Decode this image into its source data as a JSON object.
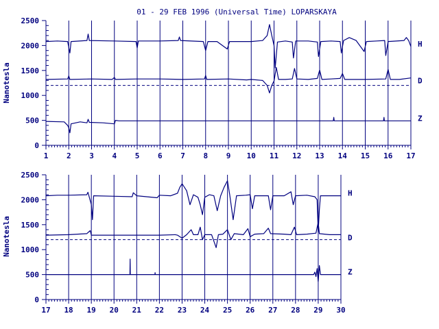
{
  "title": "01 - 29 FEB 1996 (Universal Time) LOPARSKAYA",
  "colors": {
    "line": "#00007f",
    "background": "#ffffff"
  },
  "chart_data": [
    {
      "type": "line",
      "panel": "top",
      "ylabel": "Nanotesla",
      "ylim": [
        0,
        2500
      ],
      "yticks": [
        0,
        500,
        1000,
        1500,
        2000,
        2500
      ],
      "xlim": [
        1,
        17
      ],
      "xticks": [
        1,
        2,
        3,
        4,
        5,
        6,
        7,
        8,
        9,
        10,
        11,
        12,
        13,
        14,
        15,
        16,
        17
      ],
      "grid": "vertical day lines",
      "baseline": {
        "value": 1200,
        "style": "dashed"
      },
      "series": [
        {
          "name": "H",
          "values": [
            [
              1,
              2080
            ],
            [
              1.5,
              2090
            ],
            [
              1.95,
              2080
            ],
            [
              2.05,
              1850
            ],
            [
              2.1,
              2080
            ],
            [
              2.8,
              2100
            ],
            [
              2.85,
              2230
            ],
            [
              2.9,
              2100
            ],
            [
              4,
              2090
            ],
            [
              4.95,
              2080
            ],
            [
              5.0,
              1950
            ],
            [
              5.05,
              2090
            ],
            [
              6,
              2090
            ],
            [
              6.8,
              2100
            ],
            [
              6.85,
              2170
            ],
            [
              6.9,
              2100
            ],
            [
              7.9,
              2080
            ],
            [
              8.0,
              1900
            ],
            [
              8.1,
              2080
            ],
            [
              8.5,
              2080
            ],
            [
              8.95,
              1930
            ],
            [
              9.05,
              2080
            ],
            [
              9.5,
              2080
            ],
            [
              10,
              2080
            ],
            [
              10.5,
              2100
            ],
            [
              10.7,
              2200
            ],
            [
              10.8,
              2420
            ],
            [
              10.9,
              2200
            ],
            [
              11.0,
              2000
            ],
            [
              11.05,
              1550
            ],
            [
              11.15,
              2070
            ],
            [
              11.5,
              2090
            ],
            [
              11.8,
              2070
            ],
            [
              11.85,
              1750
            ],
            [
              11.95,
              2090
            ],
            [
              12.5,
              2090
            ],
            [
              12.9,
              2070
            ],
            [
              12.95,
              1780
            ],
            [
              13.05,
              2080
            ],
            [
              13.5,
              2090
            ],
            [
              13.9,
              2080
            ],
            [
              13.95,
              1850
            ],
            [
              14.05,
              2100
            ],
            [
              14.3,
              2160
            ],
            [
              14.6,
              2100
            ],
            [
              14.95,
              1880
            ],
            [
              15.05,
              2080
            ],
            [
              15.5,
              2090
            ],
            [
              15.85,
              2100
            ],
            [
              15.9,
              1800
            ],
            [
              16.0,
              2080
            ],
            [
              16.7,
              2100
            ],
            [
              16.8,
              2160
            ],
            [
              16.9,
              2100
            ],
            [
              17.0,
              1980
            ]
          ]
        },
        {
          "name": "D",
          "values": [
            [
              1,
              1320
            ],
            [
              1.95,
              1330
            ],
            [
              2.0,
              1390
            ],
            [
              2.05,
              1320
            ],
            [
              3,
              1330
            ],
            [
              3.9,
              1320
            ],
            [
              4.0,
              1360
            ],
            [
              4.05,
              1320
            ],
            [
              5,
              1330
            ],
            [
              6,
              1330
            ],
            [
              7,
              1320
            ],
            [
              7.95,
              1330
            ],
            [
              8.0,
              1400
            ],
            [
              8.05,
              1320
            ],
            [
              9,
              1330
            ],
            [
              9.8,
              1310
            ],
            [
              10.0,
              1320
            ],
            [
              10.5,
              1300
            ],
            [
              10.7,
              1200
            ],
            [
              10.8,
              1050
            ],
            [
              10.9,
              1200
            ],
            [
              11.0,
              1290
            ],
            [
              11.1,
              1560
            ],
            [
              11.2,
              1320
            ],
            [
              11.5,
              1320
            ],
            [
              11.8,
              1330
            ],
            [
              11.9,
              1540
            ],
            [
              12.0,
              1330
            ],
            [
              12.5,
              1320
            ],
            [
              12.9,
              1340
            ],
            [
              13.0,
              1510
            ],
            [
              13.1,
              1320
            ],
            [
              13.5,
              1330
            ],
            [
              13.9,
              1340
            ],
            [
              14.0,
              1440
            ],
            [
              14.1,
              1320
            ],
            [
              15,
              1320
            ],
            [
              15.9,
              1330
            ],
            [
              16.0,
              1520
            ],
            [
              16.1,
              1320
            ],
            [
              16.5,
              1320
            ],
            [
              17,
              1350
            ]
          ]
        },
        {
          "name": "Z",
          "values": [
            [
              1,
              480
            ],
            [
              1.8,
              470
            ],
            [
              1.95,
              400
            ],
            [
              2.0,
              350
            ],
            [
              2.05,
              250
            ],
            [
              2.1,
              430
            ],
            [
              2.5,
              470
            ],
            [
              2.8,
              450
            ],
            [
              2.85,
              520
            ],
            [
              2.9,
              460
            ],
            [
              3.5,
              450
            ],
            [
              4.0,
              430
            ],
            [
              4.05,
              500
            ],
            [
              4.2,
              490
            ],
            [
              5,
              490
            ],
            [
              6,
              490
            ],
            [
              7,
              490
            ],
            [
              8,
              490
            ],
            [
              9,
              490
            ],
            [
              10,
              490
            ],
            [
              11,
              490
            ],
            [
              12,
              490
            ],
            [
              13,
              490
            ],
            [
              13.6,
              490
            ],
            [
              13.62,
              560
            ],
            [
              13.64,
              490
            ],
            [
              14,
              490
            ],
            [
              15,
              490
            ],
            [
              15.8,
              490
            ],
            [
              15.82,
              560
            ],
            [
              15.84,
              490
            ],
            [
              16,
              490
            ],
            [
              17,
              490
            ]
          ]
        }
      ]
    },
    {
      "type": "line",
      "panel": "bottom",
      "ylabel": "Nanotesla",
      "ylim": [
        0,
        2500
      ],
      "yticks": [
        0,
        500,
        1000,
        1500,
        2000,
        2500
      ],
      "xlim": [
        17,
        30
      ],
      "xticks": [
        17,
        18,
        19,
        20,
        21,
        22,
        23,
        24,
        25,
        26,
        27,
        28,
        29,
        30
      ],
      "grid": "vertical day lines",
      "baseline": {
        "value": 1200,
        "style": "dashed"
      },
      "series": [
        {
          "name": "H",
          "values": [
            [
              17,
              2080
            ],
            [
              17.5,
              2090
            ],
            [
              18,
              2090
            ],
            [
              18.8,
              2100
            ],
            [
              18.85,
              2150
            ],
            [
              19.0,
              1900
            ],
            [
              19.05,
              1600
            ],
            [
              19.1,
              2080
            ],
            [
              20,
              2070
            ],
            [
              20.8,
              2060
            ],
            [
              20.85,
              2140
            ],
            [
              21.0,
              2080
            ],
            [
              21.9,
              2040
            ],
            [
              22.0,
              2090
            ],
            [
              22.5,
              2080
            ],
            [
              22.8,
              2130
            ],
            [
              22.9,
              2250
            ],
            [
              23.0,
              2320
            ],
            [
              23.2,
              2180
            ],
            [
              23.35,
              1900
            ],
            [
              23.5,
              2100
            ],
            [
              23.7,
              2050
            ],
            [
              23.8,
              1900
            ],
            [
              23.9,
              1700
            ],
            [
              24.0,
              2050
            ],
            [
              24.2,
              2100
            ],
            [
              24.4,
              2080
            ],
            [
              24.55,
              1780
            ],
            [
              24.7,
              2080
            ],
            [
              24.85,
              2250
            ],
            [
              25.0,
              2380
            ],
            [
              25.1,
              2100
            ],
            [
              25.25,
              1600
            ],
            [
              25.4,
              2080
            ],
            [
              25.8,
              2090
            ],
            [
              26.0,
              2100
            ],
            [
              26.1,
              1820
            ],
            [
              26.2,
              2080
            ],
            [
              26.5,
              2080
            ],
            [
              26.8,
              2080
            ],
            [
              26.9,
              1800
            ],
            [
              27.0,
              2080
            ],
            [
              27.5,
              2080
            ],
            [
              27.8,
              2160
            ],
            [
              27.9,
              1900
            ],
            [
              28.0,
              2080
            ],
            [
              28.5,
              2090
            ],
            [
              28.85,
              2060
            ],
            [
              28.95,
              2000
            ],
            [
              29.0,
              1350
            ],
            [
              29.05,
              1800
            ],
            [
              29.1,
              2080
            ],
            [
              29.5,
              2080
            ],
            [
              30,
              2080
            ]
          ]
        },
        {
          "name": "D",
          "values": [
            [
              17,
              1290
            ],
            [
              18,
              1300
            ],
            [
              18.8,
              1320
            ],
            [
              18.95,
              1380
            ],
            [
              19.0,
              1290
            ],
            [
              20,
              1290
            ],
            [
              21,
              1290
            ],
            [
              22,
              1290
            ],
            [
              22.7,
              1300
            ],
            [
              22.8,
              1290
            ],
            [
              23.0,
              1230
            ],
            [
              23.2,
              1300
            ],
            [
              23.4,
              1400
            ],
            [
              23.5,
              1300
            ],
            [
              23.7,
              1300
            ],
            [
              23.8,
              1450
            ],
            [
              23.9,
              1200
            ],
            [
              24.0,
              1300
            ],
            [
              24.3,
              1300
            ],
            [
              24.5,
              1040
            ],
            [
              24.6,
              1300
            ],
            [
              24.8,
              1310
            ],
            [
              25.0,
              1400
            ],
            [
              25.15,
              1200
            ],
            [
              25.3,
              1320
            ],
            [
              25.7,
              1300
            ],
            [
              25.9,
              1420
            ],
            [
              26.0,
              1260
            ],
            [
              26.2,
              1310
            ],
            [
              26.6,
              1320
            ],
            [
              26.8,
              1430
            ],
            [
              26.9,
              1320
            ],
            [
              27.5,
              1310
            ],
            [
              27.8,
              1300
            ],
            [
              27.95,
              1450
            ],
            [
              28.05,
              1300
            ],
            [
              28.5,
              1310
            ],
            [
              28.9,
              1330
            ],
            [
              29.0,
              1550
            ],
            [
              29.05,
              1320
            ],
            [
              29.5,
              1300
            ],
            [
              30,
              1300
            ]
          ]
        },
        {
          "name": "Z",
          "values": [
            [
              17,
              500
            ],
            [
              18,
              500
            ],
            [
              19,
              500
            ],
            [
              20,
              500
            ],
            [
              20.7,
              500
            ],
            [
              20.71,
              810
            ],
            [
              20.72,
              500
            ],
            [
              21,
              500
            ],
            [
              21.8,
              500
            ],
            [
              21.81,
              540
            ],
            [
              21.82,
              500
            ],
            [
              22,
              500
            ],
            [
              23,
              500
            ],
            [
              24,
              500
            ],
            [
              25,
              500
            ],
            [
              26,
              500
            ],
            [
              27,
              500
            ],
            [
              28,
              500
            ],
            [
              28.8,
              500
            ],
            [
              28.85,
              550
            ],
            [
              28.9,
              460
            ],
            [
              28.95,
              620
            ],
            [
              29.0,
              360
            ],
            [
              29.05,
              680
            ],
            [
              29.1,
              500
            ],
            [
              29.5,
              500
            ],
            [
              30,
              500
            ]
          ]
        }
      ]
    }
  ]
}
